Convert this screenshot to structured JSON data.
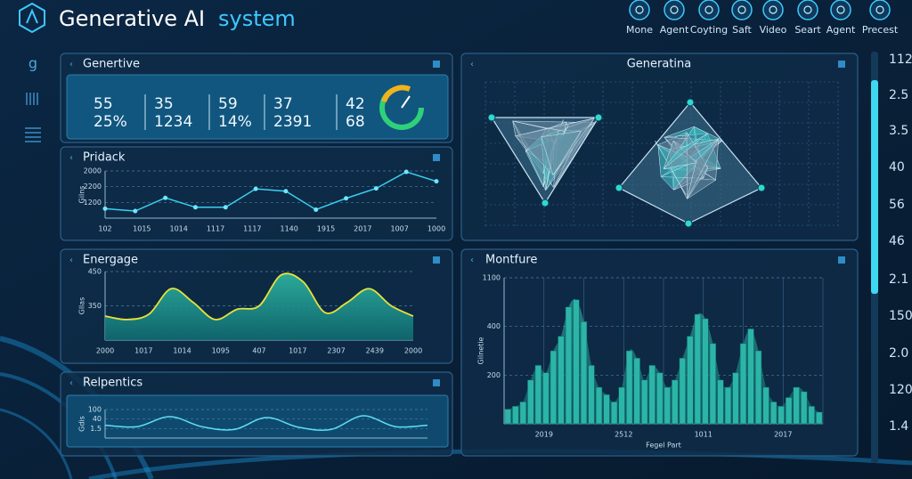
{
  "header": {
    "title": "Generative AI",
    "accent": "system"
  },
  "nav": [
    "Mone",
    "Agent",
    "Coyting",
    "Saft",
    "Video",
    "Seart",
    "Agent",
    "Precest"
  ],
  "sidebar": {
    "label": "g"
  },
  "scale": [
    "112",
    "2.5",
    "3.5",
    "40",
    "56",
    "46",
    "2.1",
    "150",
    "2.0",
    "120",
    "1.4"
  ],
  "stats_panel": {
    "title": "Genertive",
    "stats": [
      [
        "55",
        "25%"
      ],
      [
        "35",
        "1234"
      ],
      [
        "59",
        "14%"
      ],
      [
        "37",
        "2391"
      ],
      [
        "42",
        "68"
      ]
    ]
  },
  "panels": [
    {
      "title": "Pridack",
      "type": "line",
      "y_axis_label": "Gilns",
      "y_labels": [
        "2000",
        "2200",
        "1200"
      ],
      "x_labels": [
        "102",
        "1015",
        "1014",
        "1117",
        "1117",
        "1140",
        "1915",
        "2017",
        "1007",
        "1000"
      ],
      "ylim": [
        0,
        100
      ],
      "values": [
        20,
        15,
        43,
        23,
        23,
        62,
        57,
        18,
        42,
        63,
        98,
        78
      ]
    },
    {
      "title": "Energage",
      "type": "area",
      "y_axis_label": "Gllas",
      "y_labels": [
        "450",
        "350"
      ],
      "x_labels": [
        "2000",
        "1017",
        "1014",
        "1095",
        "407",
        "1017",
        "2307",
        "2439",
        "2000"
      ],
      "ylim": [
        0,
        100
      ],
      "values": [
        35,
        30,
        38,
        75,
        55,
        30,
        45,
        50,
        95,
        85,
        40,
        55,
        75,
        50,
        35
      ]
    },
    {
      "title": "Relpentics",
      "type": "wave",
      "y_axis_label": "Gdis",
      "y_labels": [
        "100",
        "40",
        "1.5"
      ],
      "x_labels": [],
      "ylim": [
        0,
        100
      ],
      "values": [
        45,
        40,
        75,
        40,
        30,
        72,
        38,
        30,
        78,
        40,
        45
      ]
    },
    {
      "title": "Generatina",
      "type": "mesh"
    },
    {
      "title": "Montfure",
      "type": "bar",
      "y_axis_label": "Gilnetie",
      "x_axis_label": "Fegel Part",
      "y_labels": [
        "1100",
        "400",
        "200"
      ],
      "x_labels": [
        "2019",
        "2512",
        "1011",
        "2017"
      ],
      "ylim": [
        0,
        100
      ],
      "values": [
        10,
        12,
        15,
        30,
        40,
        35,
        50,
        60,
        80,
        85,
        70,
        40,
        25,
        20,
        15,
        25,
        50,
        45,
        30,
        40,
        35,
        25,
        30,
        45,
        60,
        75,
        72,
        55,
        30,
        25,
        35,
        55,
        65,
        50,
        25,
        15,
        12,
        18,
        25,
        22,
        12,
        8
      ]
    }
  ]
}
